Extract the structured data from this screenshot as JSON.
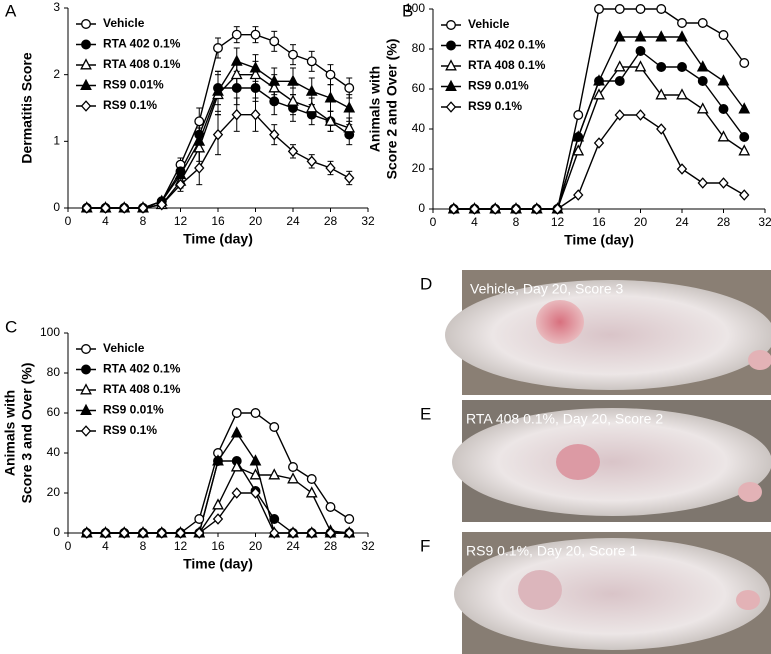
{
  "chart_data": [
    {
      "type": "line",
      "label": "A",
      "xlabel": "Time (day)",
      "ylabel": [
        "Dermatitis Score"
      ],
      "x": [
        2,
        4,
        6,
        8,
        10,
        12,
        14,
        16,
        18,
        20,
        22,
        24,
        26,
        28,
        30
      ],
      "xlim": [
        0,
        32
      ],
      "xticks": [
        0,
        4,
        8,
        12,
        16,
        20,
        24,
        28,
        32
      ],
      "ylim": [
        0,
        3
      ],
      "yticks": [
        0,
        1,
        2,
        3
      ],
      "legend": "upper left",
      "series": [
        {
          "name": "Vehicle",
          "color": "#000000",
          "marker": "circle",
          "filled": false,
          "values": [
            0,
            0,
            0,
            0,
            0.1,
            0.65,
            1.3,
            2.4,
            2.6,
            2.6,
            2.5,
            2.3,
            2.2,
            2.0,
            1.8
          ],
          "errors": [
            0,
            0,
            0,
            0,
            0.05,
            0.1,
            0.2,
            0.15,
            0.12,
            0.12,
            0.15,
            0.15,
            0.15,
            0.15,
            0.15
          ]
        },
        {
          "name": "RTA 402 0.1%",
          "color": "#000000",
          "marker": "circle",
          "filled": true,
          "values": [
            0,
            0,
            0,
            0,
            0.1,
            0.55,
            1.1,
            1.8,
            1.8,
            1.8,
            1.6,
            1.5,
            1.4,
            1.3,
            1.1
          ],
          "errors": [
            0,
            0,
            0,
            0,
            0.05,
            0.1,
            0.25,
            0.25,
            0.25,
            0.2,
            0.2,
            0.2,
            0.15,
            0.15,
            0.15
          ]
        },
        {
          "name": "RTA 408 0.1%",
          "color": "#000000",
          "marker": "triangle",
          "filled": false,
          "values": [
            0,
            0,
            0,
            0,
            0.05,
            0.4,
            0.9,
            1.7,
            2.0,
            2.0,
            1.8,
            1.6,
            1.5,
            1.3,
            1.2
          ],
          "errors": [
            0,
            0,
            0,
            0,
            0.05,
            0.1,
            0.3,
            0.3,
            0.2,
            0.2,
            0.2,
            0.2,
            0.15,
            0.15,
            0.15
          ]
        },
        {
          "name": "RS9 0.01%",
          "color": "#000000",
          "marker": "triangle",
          "filled": true,
          "values": [
            0,
            0,
            0,
            0,
            0.1,
            0.5,
            1.0,
            1.75,
            2.2,
            2.1,
            1.9,
            1.9,
            1.75,
            1.65,
            1.5
          ],
          "errors": [
            0,
            0,
            0,
            0,
            0.05,
            0.1,
            0.3,
            0.3,
            0.2,
            0.2,
            0.2,
            0.2,
            0.2,
            0.2,
            0.2
          ]
        },
        {
          "name": "RS9 0.1%",
          "color": "#000000",
          "marker": "diamond",
          "filled": false,
          "values": [
            0,
            0,
            0,
            0,
            0.05,
            0.35,
            0.6,
            1.1,
            1.4,
            1.4,
            1.1,
            0.85,
            0.7,
            0.6,
            0.45
          ],
          "errors": [
            0,
            0,
            0,
            0,
            0.05,
            0.1,
            0.25,
            0.3,
            0.25,
            0.25,
            0.15,
            0.1,
            0.1,
            0.1,
            0.1
          ]
        }
      ]
    },
    {
      "type": "line",
      "label": "B",
      "xlabel": "Time (day)",
      "ylabel": [
        "Animals with",
        "Score 2 and Over (%)"
      ],
      "x": [
        2,
        4,
        6,
        8,
        10,
        12,
        14,
        16,
        18,
        20,
        22,
        24,
        26,
        28,
        30
      ],
      "xlim": [
        0,
        32
      ],
      "xticks": [
        0,
        4,
        8,
        12,
        16,
        20,
        24,
        28,
        32
      ],
      "ylim": [
        0,
        100
      ],
      "yticks": [
        0,
        20,
        40,
        60,
        80,
        100
      ],
      "legend": "upper left",
      "series": [
        {
          "name": "Vehicle",
          "color": "#000000",
          "marker": "circle",
          "filled": false,
          "values": [
            0,
            0,
            0,
            0,
            0,
            0,
            47,
            100,
            100,
            100,
            100,
            93,
            93,
            87,
            73
          ]
        },
        {
          "name": "RTA 402 0.1%",
          "color": "#000000",
          "marker": "circle",
          "filled": true,
          "values": [
            0,
            0,
            0,
            0,
            0,
            0,
            36,
            64,
            64,
            79,
            71,
            71,
            64,
            50,
            36
          ]
        },
        {
          "name": "RTA 408 0.1%",
          "color": "#000000",
          "marker": "triangle",
          "filled": false,
          "values": [
            0,
            0,
            0,
            0,
            0,
            0,
            29,
            57,
            71,
            71,
            57,
            57,
            50,
            36,
            29
          ]
        },
        {
          "name": "RS9 0.01%",
          "color": "#000000",
          "marker": "triangle",
          "filled": true,
          "values": [
            0,
            0,
            0,
            0,
            0,
            0,
            36,
            64,
            86,
            86,
            86,
            86,
            71,
            64,
            50
          ]
        },
        {
          "name": "RS9 0.1%",
          "color": "#000000",
          "marker": "diamond",
          "filled": false,
          "values": [
            0,
            0,
            0,
            0,
            0,
            0,
            7,
            33,
            47,
            47,
            40,
            20,
            13,
            13,
            7
          ]
        }
      ]
    },
    {
      "type": "line",
      "label": "C",
      "xlabel": "Time (day)",
      "ylabel": [
        "Animals with",
        "Score 3 and Over (%)"
      ],
      "x": [
        2,
        4,
        6,
        8,
        10,
        12,
        14,
        16,
        18,
        20,
        22,
        24,
        26,
        28,
        30
      ],
      "xlim": [
        0,
        32
      ],
      "xticks": [
        0,
        4,
        8,
        12,
        16,
        20,
        24,
        28,
        32
      ],
      "ylim": [
        0,
        100
      ],
      "yticks": [
        0,
        20,
        40,
        60,
        80,
        100
      ],
      "legend": "upper left",
      "series": [
        {
          "name": "Vehicle",
          "color": "#000000",
          "marker": "circle",
          "filled": false,
          "values": [
            0,
            0,
            0,
            0,
            0,
            0,
            7,
            40,
            60,
            60,
            53,
            33,
            27,
            13,
            7
          ]
        },
        {
          "name": "RTA 402 0.1%",
          "color": "#000000",
          "marker": "circle",
          "filled": true,
          "values": [
            0,
            0,
            0,
            0,
            0,
            0,
            0,
            36,
            36,
            21,
            7,
            0,
            0,
            0,
            0
          ]
        },
        {
          "name": "RTA 408 0.1%",
          "color": "#000000",
          "marker": "triangle",
          "filled": false,
          "values": [
            0,
            0,
            0,
            0,
            0,
            0,
            0,
            14,
            33,
            29,
            29,
            27,
            20,
            1,
            0
          ]
        },
        {
          "name": "RS9 0.01%",
          "color": "#000000",
          "marker": "triangle",
          "filled": true,
          "values": [
            0,
            0,
            0,
            0,
            0,
            0,
            0,
            36,
            50,
            36,
            0,
            0,
            0,
            0,
            0
          ]
        },
        {
          "name": "RS9 0.1%",
          "color": "#000000",
          "marker": "diamond",
          "filled": false,
          "values": [
            0,
            0,
            0,
            0,
            0,
            0,
            0,
            7,
            20,
            20,
            0,
            0,
            0,
            0,
            0
          ]
        }
      ]
    }
  ],
  "photos": [
    {
      "label": "D",
      "caption": "Vehicle, Day 20, Score 3"
    },
    {
      "label": "E",
      "caption": "RTA 408 0.1%,  Day 20, Score 2"
    },
    {
      "label": "F",
      "caption": "RS9 0.1%,  Day 20, Score 1"
    }
  ]
}
